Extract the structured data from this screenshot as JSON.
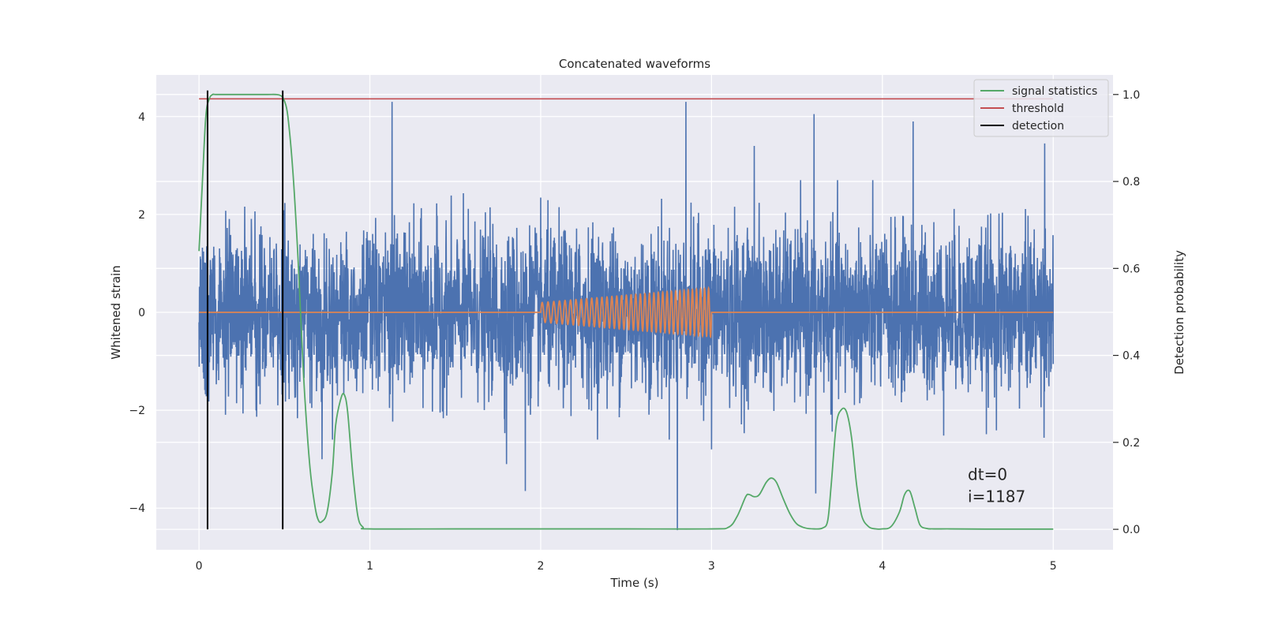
{
  "chart_data": {
    "type": "line",
    "title": "Concatenated waveforms",
    "xlabel": "Time (s)",
    "ylabel": "Whitened strain",
    "ylabel_right": "Detection probability",
    "xlim": [
      -0.25,
      5.35
    ],
    "ylim": [
      -4.85,
      4.85
    ],
    "ylim_right": [
      -0.047,
      1.045
    ],
    "x_ticks": [
      0,
      1,
      2,
      3,
      4,
      5
    ],
    "y_ticks": [
      -4,
      -2,
      0,
      2,
      4
    ],
    "y_ticks_right": [
      0.0,
      0.2,
      0.4,
      0.6,
      0.8,
      1.0
    ],
    "x_tick_labels": [
      "0",
      "1",
      "2",
      "3",
      "4",
      "5"
    ],
    "y_tick_labels": [
      "−4",
      "−2",
      "0",
      "2",
      "4"
    ],
    "y_tick_labels_right": [
      "0.0",
      "0.2",
      "0.4",
      "0.6",
      "0.8",
      "1.0"
    ],
    "grid": true,
    "legend_position": "top-right",
    "legend": [
      {
        "name": "signal statistics",
        "color": "#55a868"
      },
      {
        "name": "threshold",
        "color": "#c44e52"
      },
      {
        "name": "detection",
        "color": "#000000"
      }
    ],
    "strain_noise": {
      "color": "#4c72b0",
      "x_range": [
        0,
        5
      ],
      "typical_envelope": [
        -1.9,
        2.1
      ],
      "spikes": [
        {
          "x": 1.13,
          "y": 4.3
        },
        {
          "x": 2.85,
          "y": 4.3
        },
        {
          "x": 3.6,
          "y": 4.05
        },
        {
          "x": 4.18,
          "y": 3.9
        },
        {
          "x": 4.95,
          "y": 3.45
        },
        {
          "x": 3.25,
          "y": 3.4
        },
        {
          "x": 2.8,
          "y": -4.45
        },
        {
          "x": 1.91,
          "y": -3.65
        },
        {
          "x": 3.61,
          "y": -3.7
        },
        {
          "x": 1.8,
          "y": -3.1
        },
        {
          "x": 0.72,
          "y": -3.0
        },
        {
          "x": 3.0,
          "y": -2.8
        }
      ]
    },
    "injected_signal": {
      "color": "#dd8452",
      "t_start": 2.0,
      "t_end": 3.0,
      "amplitude_start": 0.2,
      "amplitude_end": 0.5,
      "cycles": 36
    },
    "signal_statistics": {
      "color": "#55a868",
      "axis": "right",
      "x": [
        0,
        0.02,
        0.04,
        0.06,
        0.08,
        0.1,
        0.2,
        0.3,
        0.4,
        0.45,
        0.48,
        0.5,
        0.52,
        0.55,
        0.58,
        0.6,
        0.62,
        0.65,
        0.68,
        0.7,
        0.72,
        0.75,
        0.78,
        0.8,
        0.83,
        0.85,
        0.87,
        0.9,
        0.93,
        0.96,
        1.0,
        1.5,
        2.0,
        2.5,
        3.0,
        3.1,
        3.15,
        3.2,
        3.22,
        3.25,
        3.28,
        3.32,
        3.35,
        3.38,
        3.42,
        3.46,
        3.5,
        3.55,
        3.6,
        3.65,
        3.68,
        3.7,
        3.73,
        3.76,
        3.79,
        3.82,
        3.85,
        3.88,
        3.92,
        3.96,
        4.0,
        4.05,
        4.1,
        4.13,
        4.16,
        4.19,
        4.22,
        4.26,
        4.3,
        4.4,
        4.6,
        5.0
      ],
      "y": [
        0.64,
        0.8,
        0.95,
        0.99,
        1.0,
        1.0,
        1.0,
        1.0,
        1.0,
        1.0,
        0.997,
        0.985,
        0.95,
        0.82,
        0.62,
        0.45,
        0.3,
        0.14,
        0.05,
        0.02,
        0.018,
        0.04,
        0.13,
        0.24,
        0.3,
        0.31,
        0.27,
        0.13,
        0.03,
        0.005,
        0.001,
        0.001,
        0.001,
        0.001,
        0.001,
        0.005,
        0.03,
        0.075,
        0.08,
        0.075,
        0.08,
        0.108,
        0.118,
        0.108,
        0.07,
        0.035,
        0.012,
        0.003,
        0.001,
        0.003,
        0.02,
        0.1,
        0.24,
        0.275,
        0.27,
        0.21,
        0.1,
        0.03,
        0.006,
        0.001,
        0.001,
        0.006,
        0.04,
        0.08,
        0.088,
        0.05,
        0.01,
        0.002,
        0.001,
        0.001,
        0.0005,
        0.0005
      ]
    },
    "threshold": {
      "color": "#c44e52",
      "axis": "right",
      "value": 0.99,
      "x_range": [
        0,
        5
      ]
    },
    "detections": {
      "color": "#000000",
      "x": [
        0.05,
        0.49
      ]
    },
    "annotation": [
      "dt=0",
      "i=1187"
    ]
  }
}
